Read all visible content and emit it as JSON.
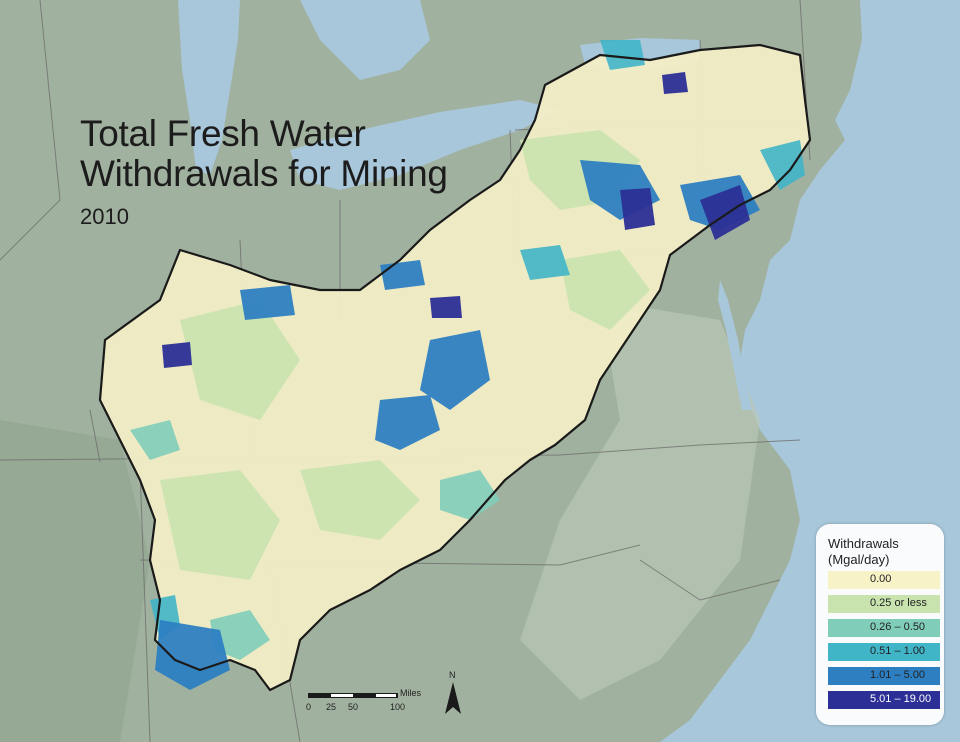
{
  "map": {
    "title_line1": "Total Fresh Water",
    "title_line2": "Withdrawals for Mining",
    "year": "2010"
  },
  "legend": {
    "title_line1": "Withdrawals",
    "title_line2": "(Mgal/day)",
    "classes": [
      {
        "label": "0.00",
        "color": "#f7f3c6"
      },
      {
        "label": "0.25 or less",
        "color": "#c9e3ae"
      },
      {
        "label": "0.26 – 0.50",
        "color": "#80cdb9"
      },
      {
        "label": "0.51 – 1.00",
        "color": "#40b5c8"
      },
      {
        "label": "1.01 – 5.00",
        "color": "#2d7fc2"
      },
      {
        "label": "5.01 – 19.00",
        "color": "#2c2f96"
      }
    ]
  },
  "scalebar": {
    "ticks": [
      "0",
      "25",
      "50",
      "100"
    ],
    "unit": "Miles"
  },
  "north_arrow": {
    "label": "N",
    "icon": "north-arrow-icon"
  },
  "colors": {
    "water": "#a9c7db",
    "land": "#9aab99",
    "boundary": "#1a1a1a"
  }
}
